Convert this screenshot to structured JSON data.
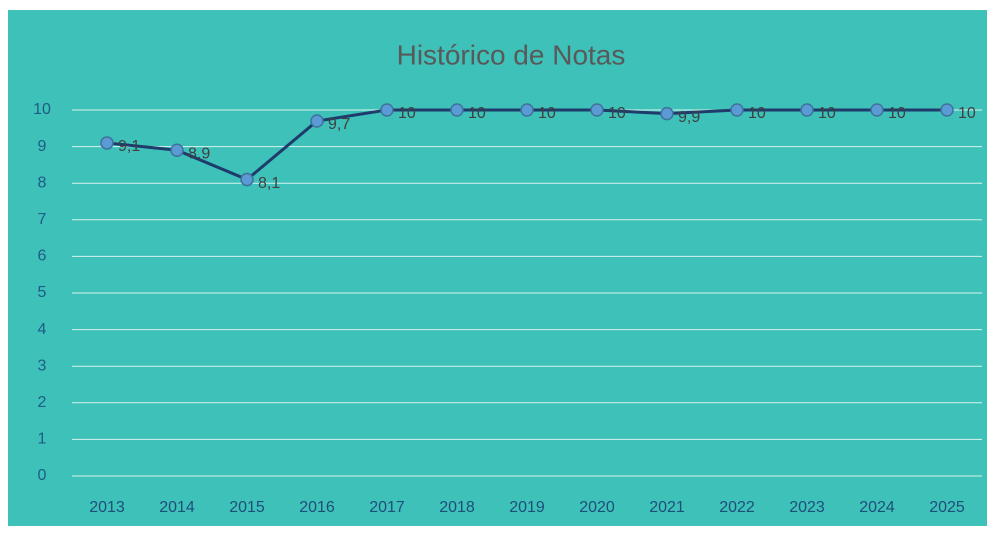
{
  "chart_data": {
    "type": "line",
    "title": "Histórico de Notas",
    "categories": [
      "2013",
      "2014",
      "2015",
      "2016",
      "2017",
      "2018",
      "2019",
      "2020",
      "2021",
      "2022",
      "2023",
      "2024",
      "2025"
    ],
    "values": [
      9.1,
      8.9,
      8.1,
      9.7,
      10,
      10,
      10,
      10,
      9.9,
      10,
      10,
      10,
      10
    ],
    "value_labels": [
      "9,1",
      "8,9",
      "8,1",
      "9,7",
      "10",
      "10",
      "10",
      "10",
      "9,9",
      "10",
      "10",
      "10",
      "10"
    ],
    "color": "#1f3b6b",
    "marker_color": "#5b9bd5",
    "ylim": [
      0,
      10
    ],
    "yticks": [
      0,
      1,
      2,
      3,
      4,
      5,
      6,
      7,
      8,
      9,
      10
    ],
    "grid": true
  }
}
